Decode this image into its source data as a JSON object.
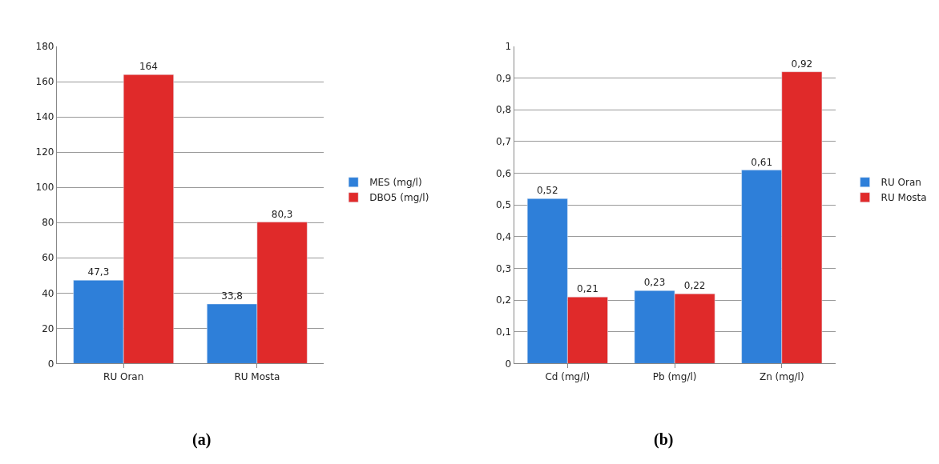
{
  "chart_data": [
    {
      "type": "bar",
      "title": "(a)",
      "categories": [
        "RU Oran",
        "RU Mosta"
      ],
      "series": [
        {
          "name": "MES (mg/l)",
          "color": "#2e7fd9",
          "values": [
            47.3,
            33.8
          ],
          "value_labels": [
            "47,3",
            "33,8"
          ]
        },
        {
          "name": "DBO5 (mg/l)",
          "color": "#e02a2a",
          "values": [
            164,
            80.3
          ],
          "value_labels": [
            "164",
            "80,3"
          ]
        }
      ],
      "ylim": [
        0,
        180
      ],
      "yticks": [
        0,
        20,
        40,
        60,
        80,
        100,
        120,
        140,
        160,
        180
      ],
      "grid": "y",
      "legend": "right"
    },
    {
      "type": "bar",
      "title": "(b)",
      "categories": [
        "Cd (mg/l)",
        "Pb (mg/l)",
        "Zn (mg/l)"
      ],
      "series": [
        {
          "name": "RU Oran",
          "color": "#2e7fd9",
          "values": [
            0.52,
            0.23,
            0.61
          ],
          "value_labels": [
            "0,52",
            "0,23",
            "0,61"
          ]
        },
        {
          "name": "RU Mosta",
          "color": "#e02a2a",
          "values": [
            0.21,
            0.22,
            0.92
          ],
          "value_labels": [
            "0,21",
            "0,22",
            "0,92"
          ]
        }
      ],
      "ylim": [
        0,
        1
      ],
      "yticks": [
        0,
        {
          "value": 0.1,
          "label": "0,1"
        },
        {
          "value": 0.2,
          "label": "0,2"
        },
        {
          "value": 0.3,
          "label": "0,3"
        },
        {
          "value": 0.4,
          "label": "0,4"
        },
        {
          "value": 0.5,
          "label": "0,5"
        },
        {
          "value": 0.6,
          "label": "0,6"
        },
        {
          "value": 0.7,
          "label": "0,7"
        },
        {
          "value": 0.8,
          "label": "0,8"
        },
        {
          "value": 0.9,
          "label": "0,9"
        },
        1
      ],
      "grid": "y",
      "legend": "right"
    }
  ]
}
